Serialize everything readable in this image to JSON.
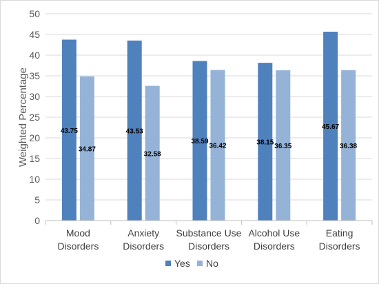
{
  "chart_data": {
    "type": "bar",
    "title": "",
    "xlabel": "",
    "ylabel": "Weighted Percentage",
    "ylim": [
      0,
      50
    ],
    "yticks": [
      0,
      5,
      10,
      15,
      20,
      25,
      30,
      35,
      40,
      45,
      50
    ],
    "grid": true,
    "legend_position": "bottom",
    "categories": [
      [
        "Mood",
        "Disorders"
      ],
      [
        "Anxiety",
        "Disorders"
      ],
      [
        "Substance Use",
        "Disorders"
      ],
      [
        "Alcohol Use",
        "Disorders"
      ],
      [
        "Eating",
        "Disorders"
      ]
    ],
    "series": [
      {
        "name": "Yes",
        "color": "#4f81bd",
        "values": [
          43.75,
          43.53,
          38.59,
          38.15,
          45.67
        ],
        "labels": [
          "43.75",
          "43.53",
          "38.59",
          "38.15",
          "45.67"
        ]
      },
      {
        "name": "No",
        "color": "#95b3d7",
        "values": [
          34.87,
          32.58,
          36.42,
          36.35,
          36.38
        ],
        "labels": [
          "34.87",
          "32.58",
          "36.42",
          "36.35",
          "36.38"
        ]
      }
    ]
  }
}
